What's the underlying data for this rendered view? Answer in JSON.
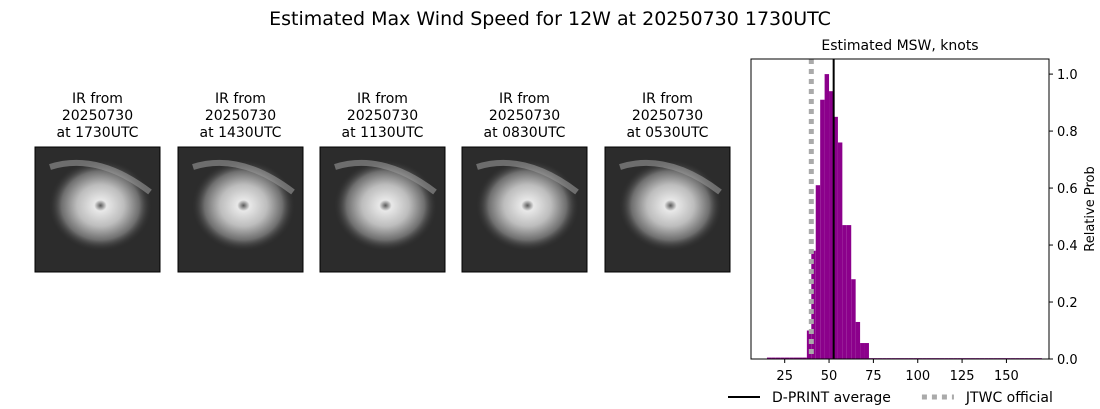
{
  "figure_title": "Estimated Max Wind Speed for 12W at 20250730 1730UTC",
  "panels": [
    {
      "title_lines": [
        "IR from",
        "20250730",
        "at 1730UTC"
      ]
    },
    {
      "title_lines": [
        "IR from",
        "20250730",
        "at 1430UTC"
      ]
    },
    {
      "title_lines": [
        "IR from",
        "20250730",
        "at 1130UTC"
      ]
    },
    {
      "title_lines": [
        "IR from",
        "20250730",
        "at 0830UTC"
      ]
    },
    {
      "title_lines": [
        "IR from",
        "20250730",
        "at 0530UTC"
      ]
    }
  ],
  "chart_data": {
    "type": "histogram",
    "title": "Estimated MSW, knots",
    "ylabel": "Relative Prob",
    "color": "#8b008b",
    "bins": [
      15,
      17.5,
      20,
      22.5,
      25,
      27.5,
      30,
      32.5,
      35,
      37.5,
      40,
      42.5,
      45,
      47.5,
      50,
      52.5,
      55,
      57.5,
      60,
      62.5,
      65,
      67.5,
      70,
      72.5,
      75,
      77.5,
      80,
      82.5,
      85,
      87.5,
      90,
      92.5,
      95,
      97.5,
      100,
      102.5,
      105,
      107.5,
      110,
      112.5,
      115,
      117.5,
      120,
      122.5,
      125,
      127.5,
      130,
      132.5,
      135,
      137.5,
      140,
      142.5,
      145,
      147.5,
      150,
      152.5,
      155,
      157.5,
      160,
      162.5,
      165,
      167.5,
      170
    ],
    "values": [
      0.005,
      0.005,
      0.005,
      0.005,
      0.005,
      0.005,
      0.005,
      0.005,
      0.005,
      0.1,
      0.38,
      0.61,
      0.91,
      1.0,
      0.94,
      0.85,
      0.76,
      0.47,
      0.47,
      0.28,
      0.13,
      0.056,
      0.056,
      0.003,
      0.003,
      0.003,
      0.003,
      0.003,
      0.003,
      0.003,
      0.003,
      0.003,
      0.003,
      0.003,
      0.003,
      0.003,
      0.003,
      0.003,
      0.003,
      0.003,
      0.003,
      0.003,
      0.003,
      0.003,
      0.003,
      0.003,
      0.003,
      0.003,
      0.003,
      0.003,
      0.003,
      0.003,
      0.003,
      0.003,
      0.003,
      0.003,
      0.003,
      0.003,
      0.003,
      0.003,
      0.003,
      0.003
    ],
    "xlim": [
      6,
      174
    ],
    "xticks": [
      25,
      50,
      75,
      100,
      125,
      150
    ],
    "ylim": [
      0,
      1.053
    ],
    "yticks": [
      {
        "value": 0,
        "label": "0.0"
      },
      0.2,
      0.4,
      0.6,
      0.8,
      {
        "value": 1,
        "label": "1.0"
      }
    ],
    "y_axis_side": "right",
    "lines": [
      {
        "name": "D-PRINT average",
        "x": 52.6,
        "color": "#000000",
        "style": "solid"
      },
      {
        "name": "JTWC official",
        "x": 40,
        "color": "#aaaaaa",
        "style": "dotted"
      }
    ]
  }
}
